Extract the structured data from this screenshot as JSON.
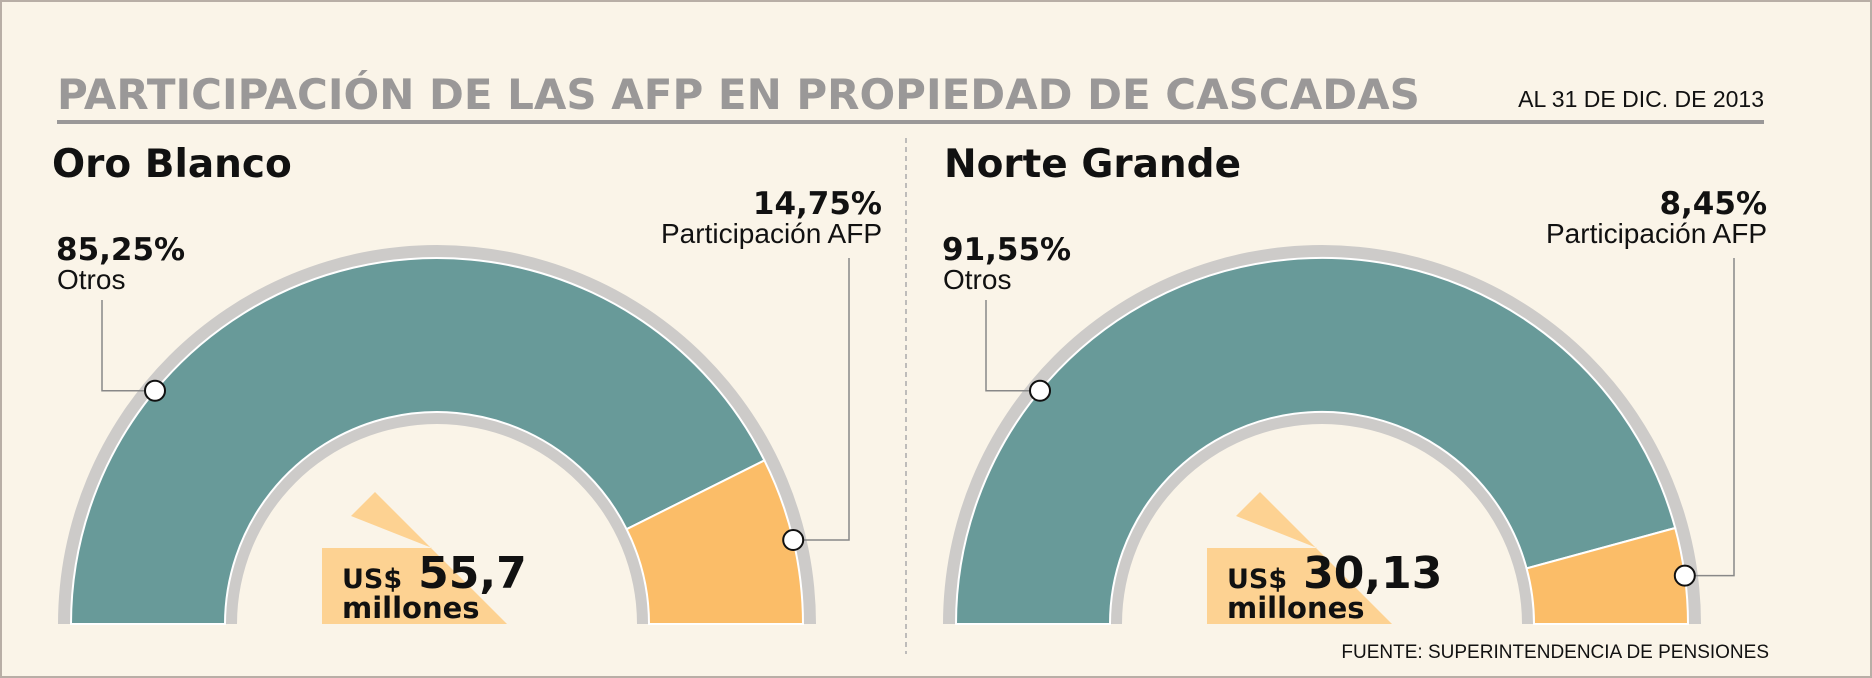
{
  "header": {
    "title": "PARTICIPACIÓN DE LAS AFP EN PROPIEDAD DE CASCADAS",
    "date": "AL 31 DE DIC. DE 2013"
  },
  "source": "FUENTE: SUPERINTENDENCIA DE PENSIONES",
  "colors": {
    "others": "#689a99",
    "afp": "#fbbd68",
    "ring": "#cdcbc9",
    "total_box": "#fdd292",
    "background": "#faf4e8"
  },
  "chart_data": [
    {
      "type": "pie",
      "title": "Oro Blanco",
      "slices": [
        {
          "label": "Otros",
          "value": 85.25,
          "value_label": "85,25%"
        },
        {
          "label": "Participación AFP",
          "value": 14.75,
          "value_label": "14,75%"
        }
      ],
      "total": {
        "currency": "US$",
        "value": "55,7",
        "unit": "millones"
      }
    },
    {
      "type": "pie",
      "title": "Norte Grande",
      "slices": [
        {
          "label": "Otros",
          "value": 91.55,
          "value_label": "91,55%"
        },
        {
          "label": "Participación AFP",
          "value": 8.45,
          "value_label": "8,45%"
        }
      ],
      "total": {
        "currency": "US$",
        "value": "30,13",
        "unit": "millones"
      }
    }
  ]
}
